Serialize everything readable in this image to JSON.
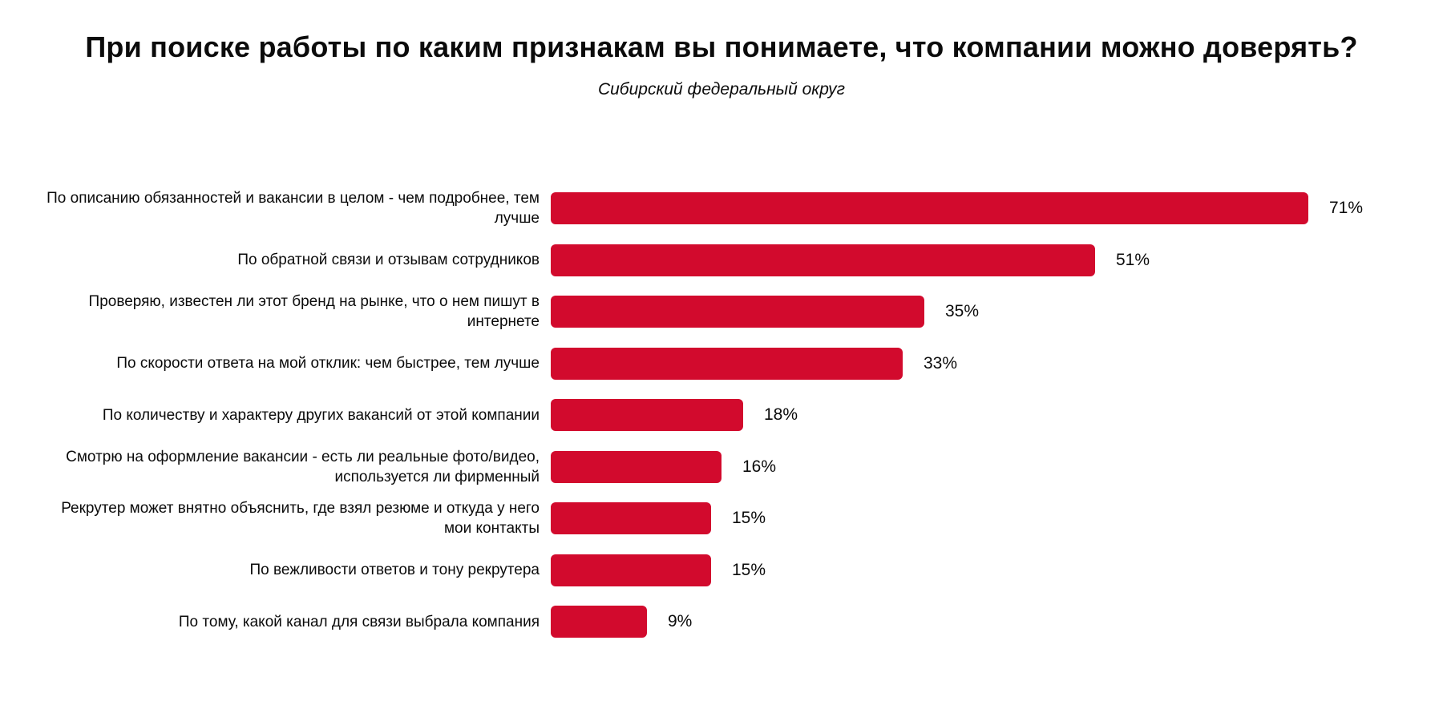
{
  "title": "При поиске работы по каким признакам вы понимаете, что компании можно доверять?",
  "subtitle": "Сибирский федеральный округ",
  "chart_data": {
    "type": "bar",
    "orientation": "horizontal",
    "title": "При поиске работы по каким признакам вы понимаете, что компании можно доверять?",
    "subtitle": "Сибирский федеральный округ",
    "unit": "%",
    "bar_color": "#d20a2d",
    "text_color": "#0b0b0b",
    "axis_visible": false,
    "grid": false,
    "legend": "none",
    "xlim": [
      0,
      75
    ],
    "data_label_position": "outside-end",
    "categories": [
      "По описанию обязанностей и вакансии в целом - чем подробнее, тем лучше",
      "По обратной связи и отзывам сотрудников",
      "Проверяю, известен ли этот бренд на рынке, что о нем пишут в интернете",
      "По скорости ответа на мой отклик: чем быстрее, тем лучше",
      "По количеству и характеру других вакансий от этой компании",
      "Смотрю на оформление вакансии - есть ли реальные фото/видео, используется ли фирменный",
      "Рекрутер может внятно объяснить, где взял резюме и откуда у него мои контакты",
      "По вежливости ответов и тону рекрутера",
      "По тому, какой канал для связи выбрала компания"
    ],
    "values": [
      71,
      51,
      35,
      33,
      18,
      16,
      15,
      15,
      9
    ],
    "value_labels": [
      "71%",
      "51%",
      "35%",
      "33%",
      "18%",
      "16%",
      "15%",
      "15%",
      "9%"
    ]
  }
}
